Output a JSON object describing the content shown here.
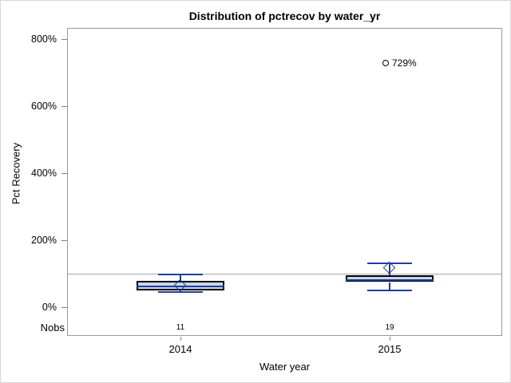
{
  "chart_data": {
    "type": "boxplot",
    "title": "Distribution of pctrecov by water_yr",
    "xlabel": "Water year",
    "ylabel": "Pct Recovery",
    "nobs_label": "Nobs",
    "y_ticks": [
      0,
      200,
      400,
      600,
      800
    ],
    "y_tick_suffix": "%",
    "ylim": [
      0,
      800
    ],
    "reference_line": 100,
    "categories": [
      "2014",
      "2015"
    ],
    "series": [
      {
        "category": "2014",
        "nobs": 11,
        "whisker_low": 45,
        "q1": 50,
        "median": 63,
        "q3": 79,
        "whisker_high": 97,
        "mean": 64,
        "outliers": []
      },
      {
        "category": "2015",
        "nobs": 19,
        "whisker_low": 50,
        "q1": 75,
        "median": 81,
        "q3": 95,
        "whisker_high": 131,
        "mean": 117,
        "outliers": [
          729
        ]
      }
    ],
    "colors": {
      "box_fill": "#c9d5ea",
      "box_border": "#000000",
      "whisker": "#1f3d9c",
      "frame": "#999999",
      "reference_line": "#a9a9a9",
      "outlier": "#000000",
      "text": "#000000"
    },
    "legend": "none",
    "grid": "off"
  }
}
